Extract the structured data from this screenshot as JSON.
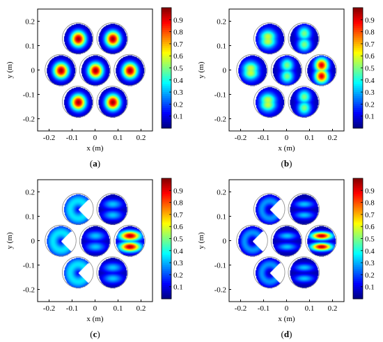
{
  "chart_data": [
    {
      "type": "heatmap",
      "caption": "a",
      "xlabel": "x (m)",
      "ylabel": "y (m)",
      "xlim": [
        -0.25,
        0.25
      ],
      "ylim": [
        -0.25,
        0.25
      ],
      "xticks": [
        "-0.2",
        "-0.1",
        "0",
        "0.1",
        "0.2"
      ],
      "yticks": [
        "0.2",
        "0.1",
        "0",
        "-0.1",
        "-0.2"
      ],
      "colorbar": {
        "ticks": [
          "0.9",
          "0.8",
          "0.7",
          "0.6",
          "0.5",
          "0.4",
          "0.3",
          "0.2",
          "0.1"
        ],
        "range": [
          0,
          1
        ],
        "colormap": "jet"
      },
      "spot_centers": [
        [
          -0.075,
          0.13
        ],
        [
          0.075,
          0.13
        ],
        [
          -0.15,
          0
        ],
        [
          0,
          0
        ],
        [
          0.15,
          0
        ],
        [
          -0.075,
          -0.13
        ],
        [
          0.075,
          -0.13
        ]
      ],
      "spot_radius": 0.063,
      "pattern": "single-centered-peak",
      "peak_value": 0.95
    },
    {
      "type": "heatmap",
      "caption": "b",
      "xlabel": "x (m)",
      "ylabel": "y (m)",
      "xlim": [
        -0.25,
        0.25
      ],
      "ylim": [
        -0.25,
        0.25
      ],
      "xticks": [
        "-0.2",
        "-0.1",
        "0",
        "0.1",
        "0.2"
      ],
      "yticks": [
        "0.2",
        "0.1",
        "0",
        "-0.1",
        "-0.2"
      ],
      "colorbar": {
        "ticks": [
          "0.9",
          "0.8",
          "0.7",
          "0.6",
          "0.5",
          "0.4",
          "0.3",
          "0.2",
          "0.1"
        ],
        "range": [
          0,
          1
        ],
        "colormap": "jet"
      },
      "spot_centers": [
        [
          -0.075,
          0.13
        ],
        [
          0.075,
          0.13
        ],
        [
          -0.15,
          0
        ],
        [
          0,
          0
        ],
        [
          0.15,
          0
        ],
        [
          -0.075,
          -0.13
        ],
        [
          0.075,
          -0.13
        ]
      ],
      "spot_radius": 0.063,
      "pattern": "crescent-and-double-lobe",
      "peak_value": 0.8
    },
    {
      "type": "heatmap",
      "caption": "c",
      "xlabel": "x (m)",
      "ylabel": "y (m)",
      "xlim": [
        -0.25,
        0.25
      ],
      "ylim": [
        -0.25,
        0.25
      ],
      "xticks": [
        "-0.2",
        "-0.1",
        "0",
        "0.1",
        "0.2"
      ],
      "yticks": [
        "0.2",
        "0.1",
        "0",
        "-0.1",
        "-0.2"
      ],
      "colorbar": {
        "ticks": [
          "0.9",
          "0.8",
          "0.7",
          "0.6",
          "0.5",
          "0.4",
          "0.3",
          "0.2",
          "0.1"
        ],
        "range": [
          0,
          1
        ],
        "colormap": "jet"
      },
      "spot_centers": [
        [
          -0.075,
          0.13
        ],
        [
          0.075,
          0.13
        ],
        [
          -0.15,
          0
        ],
        [
          0,
          0
        ],
        [
          0.15,
          0
        ],
        [
          -0.075,
          -0.13
        ],
        [
          0.075,
          -0.13
        ]
      ],
      "spot_radius": 0.063,
      "pattern": "pacman-and-double-lobe",
      "peak_value": 0.85
    },
    {
      "type": "heatmap",
      "caption": "d",
      "xlabel": "x (m)",
      "ylabel": "y (m)",
      "xlim": [
        -0.25,
        0.25
      ],
      "ylim": [
        -0.25,
        0.25
      ],
      "xticks": [
        "-0.2",
        "-0.1",
        "0",
        "0.1",
        "0.2"
      ],
      "yticks": [
        "0.2",
        "0.1",
        "0",
        "-0.1",
        "-0.2"
      ],
      "colorbar": {
        "ticks": [
          "0.9",
          "0.8",
          "0.7",
          "0.6",
          "0.5",
          "0.4",
          "0.3",
          "0.2",
          "0.1"
        ],
        "range": [
          0,
          1
        ],
        "colormap": "jet"
      },
      "spot_centers": [
        [
          -0.075,
          0.13
        ],
        [
          0.075,
          0.13
        ],
        [
          -0.15,
          0
        ],
        [
          0,
          0
        ],
        [
          0.15,
          0
        ],
        [
          -0.075,
          -0.13
        ],
        [
          0.075,
          -0.13
        ]
      ],
      "spot_radius": 0.063,
      "pattern": "thin-pacman-and-double-lobe",
      "peak_value": 0.9
    }
  ]
}
